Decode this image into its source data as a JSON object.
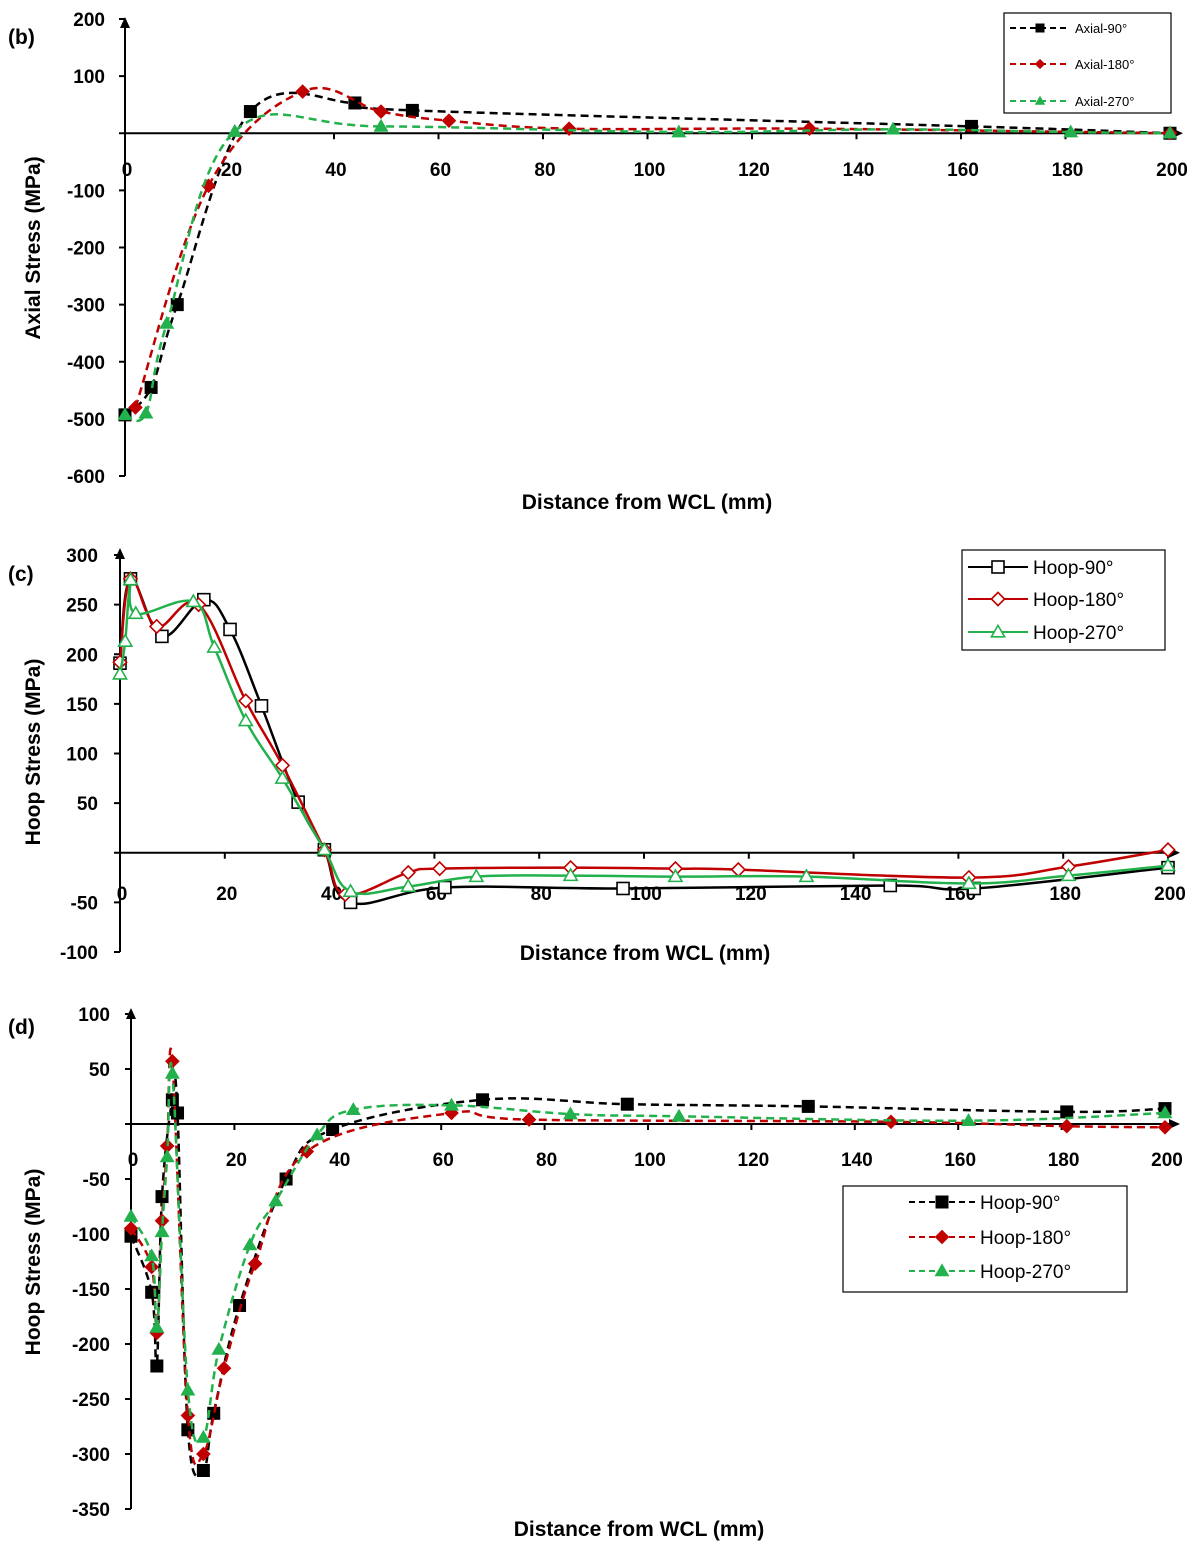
{
  "chart_data": [
    {
      "type": "line",
      "panel_label": "(b)",
      "xlabel": "Distance from WCL (mm)",
      "ylabel": "Axial Stress (MPa)",
      "xlim": [
        0,
        200
      ],
      "ylim": [
        -600,
        200
      ],
      "x_ticks": [
        "0",
        "20",
        "40",
        "60",
        "80",
        "100",
        "120",
        "140",
        "160",
        "180",
        "200"
      ],
      "y_ticks": [
        "200",
        "100",
        "",
        "-100",
        "-200",
        "-300",
        "-400",
        "-500",
        "-600"
      ],
      "legend_position": "top-right",
      "series": [
        {
          "name": "Axial-90°",
          "color": "#000000",
          "marker": "square",
          "dash": true,
          "points": [
            [
              0,
              -493
            ],
            [
              5,
              -445
            ],
            [
              10,
              -300
            ],
            [
              24,
              38
            ],
            [
              44,
              53
            ],
            [
              55,
              40
            ],
            [
              162,
              12
            ],
            [
              200,
              0
            ]
          ]
        },
        {
          "name": "Axial-180°",
          "color": "#c00000",
          "marker": "diamond",
          "dash": true,
          "points": [
            [
              2,
              -480
            ],
            [
              16,
              -92
            ],
            [
              34,
              73
            ],
            [
              49,
              38
            ],
            [
              62,
              22
            ],
            [
              85,
              8
            ],
            [
              131,
              8
            ],
            [
              200,
              0
            ]
          ]
        },
        {
          "name": "Axial-270°",
          "color": "#22b14c",
          "marker": "triangle",
          "dash": true,
          "points": [
            [
              0,
              -493
            ],
            [
              4,
              -490
            ],
            [
              8,
              -333
            ],
            [
              21,
              3
            ],
            [
              49,
              12
            ],
            [
              106,
              2
            ],
            [
              147,
              7
            ],
            [
              181,
              2
            ],
            [
              200,
              0
            ]
          ]
        }
      ]
    },
    {
      "type": "line",
      "panel_label": "(c)",
      "xlabel": "Distance from WCL (mm)",
      "ylabel": "Hoop Stress (MPa)",
      "xlim": [
        0,
        200
      ],
      "ylim": [
        -100,
        300
      ],
      "x_ticks": [
        "0",
        "20",
        "40",
        "60",
        "80",
        "100",
        "120",
        "140",
        "160",
        "180",
        "200"
      ],
      "y_ticks": [
        "300",
        "250",
        "200",
        "150",
        "100",
        "50",
        "",
        "-50",
        "-100"
      ],
      "legend_position": "top-right",
      "series": [
        {
          "name": "Hoop-90°",
          "color": "#000000",
          "marker": "square-open",
          "dash": false,
          "points": [
            [
              0,
              191
            ],
            [
              2,
              276
            ],
            [
              8,
              218
            ],
            [
              16,
              255
            ],
            [
              21,
              225
            ],
            [
              27,
              148
            ],
            [
              34,
              51
            ],
            [
              39,
              3
            ],
            [
              44,
              -50
            ],
            [
              62,
              -35
            ],
            [
              96,
              -36
            ],
            [
              147,
              -33
            ],
            [
              163,
              -36
            ],
            [
              200,
              -15
            ]
          ]
        },
        {
          "name": "Hoop-180°",
          "color": "#c00000",
          "marker": "diamond-open",
          "dash": false,
          "points": [
            [
              0,
              192
            ],
            [
              2,
              276
            ],
            [
              7,
              228
            ],
            [
              15,
              250
            ],
            [
              24,
              153
            ],
            [
              31,
              88
            ],
            [
              39,
              3
            ],
            [
              43,
              -42
            ],
            [
              55,
              -20
            ],
            [
              61,
              -16
            ],
            [
              86,
              -15
            ],
            [
              106,
              -16
            ],
            [
              118,
              -17
            ],
            [
              162,
              -25
            ],
            [
              181,
              -14
            ],
            [
              200,
              3
            ]
          ]
        },
        {
          "name": "Hoop-270°",
          "color": "#22b14c",
          "marker": "triangle-open",
          "dash": false,
          "points": [
            [
              0,
              180
            ],
            [
              1,
              213
            ],
            [
              2,
              275
            ],
            [
              3,
              241
            ],
            [
              14,
              253
            ],
            [
              18,
              207
            ],
            [
              24,
              133
            ],
            [
              31,
              75
            ],
            [
              39,
              3
            ],
            [
              44,
              -39
            ],
            [
              55,
              -34
            ],
            [
              68,
              -24
            ],
            [
              86,
              -23
            ],
            [
              106,
              -24
            ],
            [
              131,
              -24
            ],
            [
              162,
              -31
            ],
            [
              181,
              -23
            ],
            [
              200,
              -13
            ]
          ]
        }
      ]
    },
    {
      "type": "line",
      "panel_label": "(d)",
      "xlabel": "Distance from WCL (mm)",
      "ylabel": "Hoop Stress (MPa)",
      "xlim": [
        0,
        200
      ],
      "ylim": [
        -350,
        100
      ],
      "x_ticks": [
        "0",
        "20",
        "40",
        "60",
        "80",
        "100",
        "120",
        "140",
        "160",
        "180",
        "200"
      ],
      "y_ticks": [
        "100",
        "50",
        "",
        "-50",
        "-100",
        "-150",
        "-200",
        "-250",
        "-300",
        "-350"
      ],
      "legend_position": "right",
      "series": [
        {
          "name": "Hoop-90°",
          "color": "#000000",
          "marker": "square",
          "dash": true,
          "points": [
            [
              0,
              -102
            ],
            [
              4,
              -153
            ],
            [
              5,
              -220
            ],
            [
              6,
              -66
            ],
            [
              8,
              22
            ],
            [
              9,
              10
            ],
            [
              11,
              -278
            ],
            [
              14,
              -315
            ],
            [
              16,
              -263
            ],
            [
              21,
              -165
            ],
            [
              30,
              -50
            ],
            [
              39,
              -5
            ],
            [
              68,
              22
            ],
            [
              96,
              18
            ],
            [
              131,
              16
            ],
            [
              181,
              11
            ],
            [
              200,
              14
            ]
          ]
        },
        {
          "name": "Hoop-180°",
          "color": "#c00000",
          "marker": "diamond",
          "dash": true,
          "points": [
            [
              0,
              -95
            ],
            [
              4,
              -130
            ],
            [
              5,
              -190
            ],
            [
              6,
              -88
            ],
            [
              7,
              -20
            ],
            [
              8,
              57
            ],
            [
              11,
              -265
            ],
            [
              14,
              -300
            ],
            [
              18,
              -222
            ],
            [
              24,
              -127
            ],
            [
              34,
              -25
            ],
            [
              62,
              10
            ],
            [
              77,
              4
            ],
            [
              147,
              2
            ],
            [
              181,
              -2
            ],
            [
              200,
              -3
            ]
          ]
        },
        {
          "name": "Hoop-270°",
          "color": "#22b14c",
          "marker": "triangle",
          "dash": true,
          "points": [
            [
              0,
              -84
            ],
            [
              4,
              -120
            ],
            [
              5,
              -185
            ],
            [
              6,
              -98
            ],
            [
              7,
              -30
            ],
            [
              8,
              46
            ],
            [
              11,
              -242
            ],
            [
              14,
              -285
            ],
            [
              17,
              -205
            ],
            [
              23,
              -110
            ],
            [
              28,
              -70
            ],
            [
              36,
              -10
            ],
            [
              43,
              13
            ],
            [
              62,
              17
            ],
            [
              85,
              9
            ],
            [
              106,
              7
            ],
            [
              162,
              3
            ],
            [
              200,
              10
            ]
          ]
        }
      ]
    }
  ]
}
